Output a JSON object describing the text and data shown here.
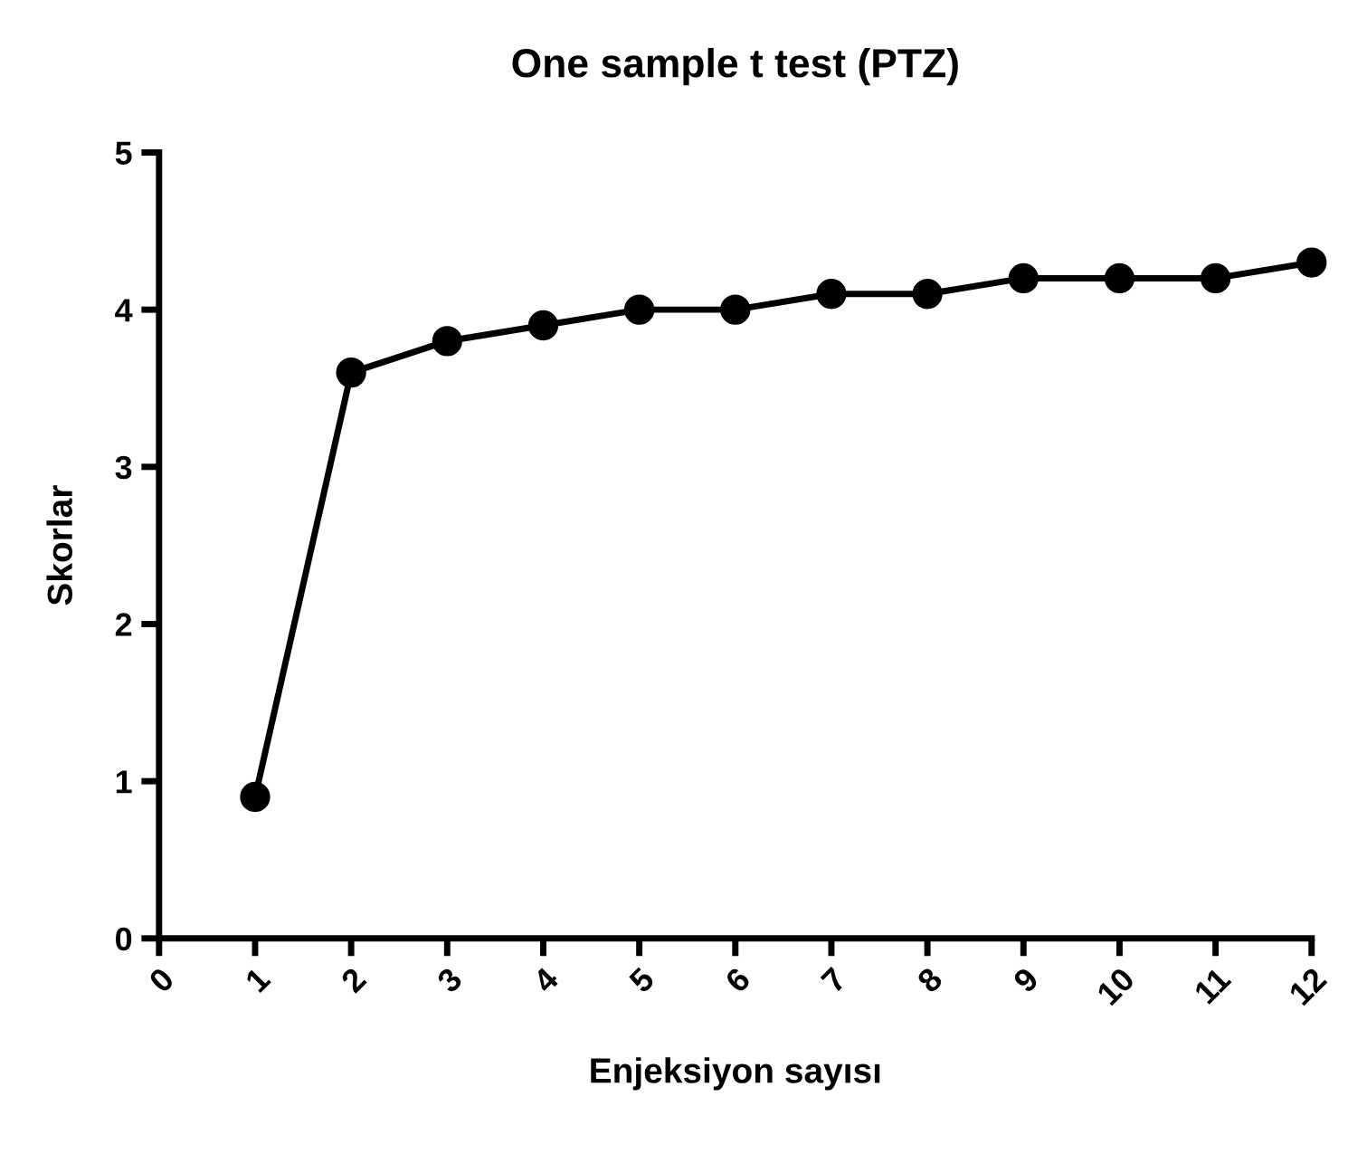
{
  "chart_data": {
    "type": "line",
    "title": "One sample t test (PTZ)",
    "xlabel": "Enjeksiyon sayısı",
    "ylabel": "Skorlar",
    "x": [
      1,
      2,
      3,
      4,
      5,
      6,
      7,
      8,
      9,
      10,
      11,
      12
    ],
    "series": [
      {
        "color": "#000000",
        "values": [
          0.9,
          3.6,
          3.8,
          3.9,
          4.0,
          4.0,
          4.1,
          4.1,
          4.2,
          4.2,
          4.2,
          4.3
        ]
      }
    ],
    "xlim": [
      0,
      12
    ],
    "xticks": [
      0,
      1,
      2,
      3,
      4,
      5,
      6,
      7,
      8,
      9,
      10,
      11,
      12
    ],
    "ylim": [
      0,
      5
    ],
    "yticks": [
      0,
      1,
      2,
      3,
      4,
      5
    ],
    "grid": false,
    "legend": false,
    "marker": "circle",
    "line_style": "solid"
  }
}
